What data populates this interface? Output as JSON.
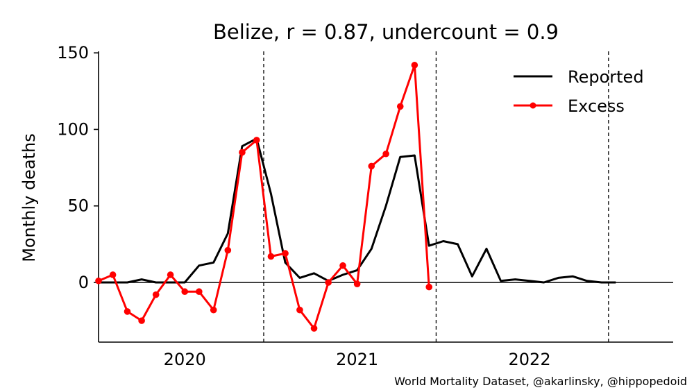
{
  "chart_data": {
    "type": "line",
    "title_country": "Belize",
    "title_stats": ", r = 0.87, undercount = 0.9",
    "xlabel": "",
    "ylabel": "Monthly deaths",
    "ylim": [
      -39,
      151
    ],
    "yticks": [
      0,
      50,
      100,
      150
    ],
    "xlim": [
      2019.5,
      2022.833
    ],
    "xticks": [
      {
        "value": 2020,
        "label": "2020"
      },
      {
        "value": 2021,
        "label": "2021"
      },
      {
        "value": 2022,
        "label": "2022"
      }
    ],
    "year_separators": [
      2020.458,
      2021.458,
      2022.458
    ],
    "zero_line": 0,
    "legend_position": "top-right",
    "credit": "World Mortality Dataset, @akarlinsky, @hippopedoid",
    "series": [
      {
        "name": "Reported",
        "color": "#000000",
        "markers": false,
        "points": [
          [
            2019.5,
            0
          ],
          [
            2019.583,
            0
          ],
          [
            2019.667,
            0
          ],
          [
            2019.75,
            2
          ],
          [
            2019.833,
            0
          ],
          [
            2019.917,
            0
          ],
          [
            2020.0,
            0
          ],
          [
            2020.083,
            11
          ],
          [
            2020.167,
            13
          ],
          [
            2020.25,
            32
          ],
          [
            2020.333,
            89
          ],
          [
            2020.417,
            94
          ],
          [
            2020.5,
            58
          ],
          [
            2020.583,
            13
          ],
          [
            2020.667,
            3
          ],
          [
            2020.75,
            6
          ],
          [
            2020.833,
            1
          ],
          [
            2020.917,
            5
          ],
          [
            2021.0,
            8
          ],
          [
            2021.083,
            22
          ],
          [
            2021.167,
            50
          ],
          [
            2021.25,
            82
          ],
          [
            2021.333,
            83
          ],
          [
            2021.417,
            24
          ],
          [
            2021.5,
            27
          ],
          [
            2021.583,
            25
          ],
          [
            2021.667,
            4
          ],
          [
            2021.75,
            22
          ],
          [
            2021.833,
            1
          ],
          [
            2021.917,
            2
          ],
          [
            2022.0,
            1
          ],
          [
            2022.083,
            0
          ],
          [
            2022.167,
            3
          ],
          [
            2022.25,
            4
          ],
          [
            2022.333,
            1
          ],
          [
            2022.417,
            0
          ],
          [
            2022.5,
            0
          ]
        ]
      },
      {
        "name": "Excess",
        "color": "#ff0000",
        "markers": true,
        "points": [
          [
            2019.5,
            1
          ],
          [
            2019.583,
            5
          ],
          [
            2019.667,
            -19
          ],
          [
            2019.75,
            -25
          ],
          [
            2019.833,
            -8
          ],
          [
            2019.917,
            5
          ],
          [
            2020.0,
            -6
          ],
          [
            2020.083,
            -6
          ],
          [
            2020.167,
            -18
          ],
          [
            2020.25,
            21
          ],
          [
            2020.333,
            85
          ],
          [
            2020.417,
            93
          ],
          [
            2020.5,
            17
          ],
          [
            2020.583,
            19
          ],
          [
            2020.667,
            -18
          ],
          [
            2020.75,
            -30
          ],
          [
            2020.833,
            0
          ],
          [
            2020.917,
            11
          ],
          [
            2021.0,
            -1
          ],
          [
            2021.083,
            76
          ],
          [
            2021.167,
            84
          ],
          [
            2021.25,
            115
          ],
          [
            2021.333,
            142
          ],
          [
            2021.417,
            -3
          ]
        ]
      }
    ]
  }
}
